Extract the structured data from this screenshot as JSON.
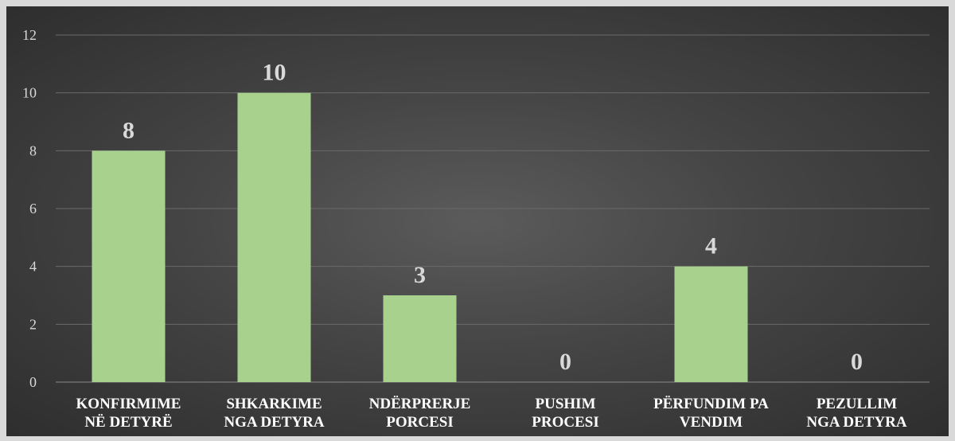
{
  "chart_data": {
    "type": "bar",
    "categories": [
      [
        "KONFIRMIME",
        "NË DETYRË"
      ],
      [
        "SHKARKIME",
        "NGA DETYRA"
      ],
      [
        "NDËRPRERJE",
        "PORCESI"
      ],
      [
        "PUSHIM",
        "PROCESI"
      ],
      [
        "PËRFUNDIM PA",
        "VENDIM"
      ],
      [
        "PEZULLIM",
        "NGA DETYRA"
      ]
    ],
    "values": [
      8,
      10,
      3,
      0,
      4,
      0
    ],
    "data_labels": [
      "8",
      "10",
      "3",
      "0",
      "4",
      "0"
    ],
    "ylim": [
      0,
      12
    ],
    "yticks": [
      0,
      2,
      4,
      6,
      8,
      10,
      12
    ],
    "grid": true,
    "bar_color": "#a9d18e",
    "title": "",
    "xlabel": "",
    "ylabel": ""
  }
}
